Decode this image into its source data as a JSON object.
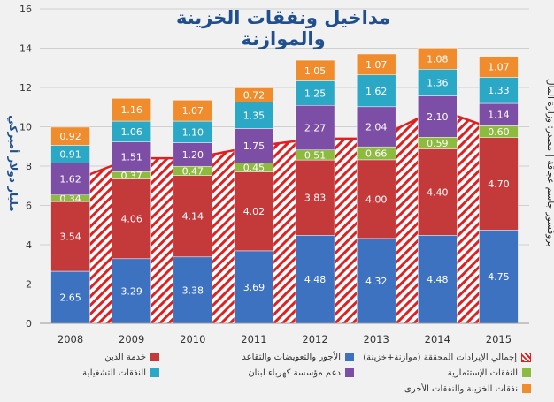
{
  "chart_data": {
    "type": "bar",
    "title": "مداخيل ونفقات الخزينة والموازنة",
    "ylabel": "مليار دولار أميركي",
    "source_label": "بروفسور جاسم عجاقة | مصدر: وزارة المال",
    "ylim": [
      0,
      16
    ],
    "yticks": [
      0,
      2,
      4,
      6,
      8,
      10,
      12,
      14,
      16
    ],
    "categories": [
      "2008",
      "2009",
      "2010",
      "2011",
      "2012",
      "2013",
      "2014",
      "2015"
    ],
    "stack_order": [
      "wages",
      "debt",
      "capital",
      "edl",
      "operating",
      "other"
    ],
    "series": [
      {
        "key": "wages",
        "name": "الأجور والتعويضات والتقاعد",
        "color": "#3d72c1",
        "values": [
          2.65,
          3.29,
          3.38,
          3.69,
          4.48,
          4.32,
          4.48,
          4.75
        ]
      },
      {
        "key": "debt",
        "name": "خدمة الدين",
        "color": "#c4393a",
        "values": [
          3.54,
          4.06,
          4.14,
          4.02,
          3.83,
          4.0,
          4.4,
          4.7
        ]
      },
      {
        "key": "capital",
        "name": "النفقات الإستثمارية",
        "color": "#8dbb40",
        "values": [
          0.34,
          0.37,
          0.47,
          0.45,
          0.51,
          0.66,
          0.59,
          0.6
        ]
      },
      {
        "key": "edl",
        "name": "دعم مؤسسة كهرباء لبنان",
        "color": "#7d4ea6",
        "values": [
          1.62,
          1.51,
          1.2,
          1.75,
          2.27,
          2.04,
          2.1,
          1.14
        ]
      },
      {
        "key": "operating",
        "name": "النفقات التشغيلية",
        "color": "#2aa8c6",
        "values": [
          0.91,
          1.06,
          1.1,
          1.35,
          1.25,
          1.62,
          1.36,
          1.33
        ]
      },
      {
        "key": "other",
        "name": "نفقات الخزينة والنفقات الأخرى",
        "color": "#f08c2c",
        "values": [
          0.92,
          1.16,
          1.07,
          0.72,
          1.05,
          1.07,
          1.08,
          1.07
        ]
      }
    ],
    "revenue": {
      "name": "إجمالي الإيرادات المحققة (موازنة+خزينة)",
      "color": "#e02020",
      "type": "area",
      "values": [
        7.2,
        8.4,
        8.4,
        9.0,
        9.4,
        9.4,
        10.9,
        9.8
      ]
    }
  }
}
